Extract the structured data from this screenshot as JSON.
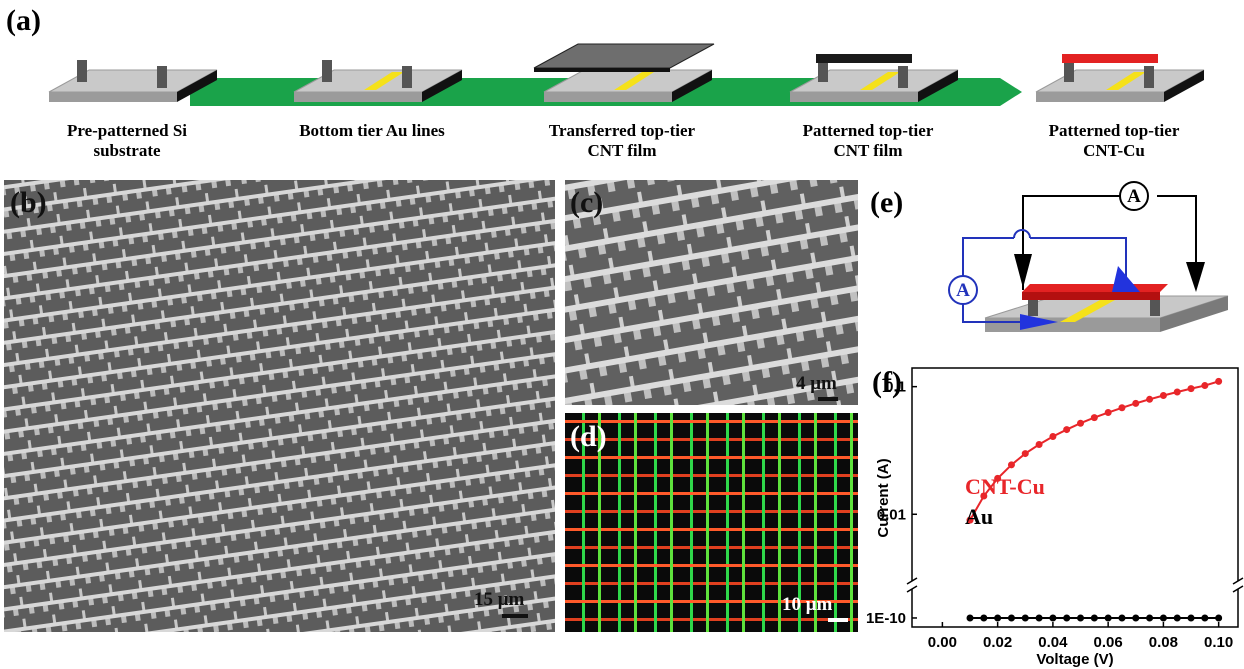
{
  "panel_a": {
    "label": "(a)",
    "captions": [
      [
        "Pre-patterned Si",
        "substrate"
      ],
      [
        "Bottom tier Au lines"
      ],
      [
        "Transferred top-tier",
        "CNT film"
      ],
      [
        "Patterned top-tier",
        "CNT film"
      ],
      [
        "Patterned top-tier",
        "CNT-Cu"
      ]
    ]
  },
  "panel_b": {
    "label": "(b)",
    "scale_bar": "15 μm"
  },
  "panel_c": {
    "label": "(c)",
    "scale_bar": "4 μm"
  },
  "panel_d": {
    "label": "(d)",
    "scale_bar": "10 μm"
  },
  "panel_e": {
    "label": "(e)",
    "ammeters": [
      "A",
      "A"
    ]
  },
  "panel_f": {
    "label": "(f)"
  },
  "chart_data": {
    "type": "line",
    "x_label": "Voltage (V)",
    "y_label": "Current (A)",
    "log_y": true,
    "x": [
      0.01,
      0.015,
      0.02,
      0.025,
      0.03,
      0.035,
      0.04,
      0.045,
      0.05,
      0.055,
      0.06,
      0.065,
      0.07,
      0.075,
      0.08,
      0.085,
      0.09,
      0.095,
      0.1
    ],
    "series": [
      {
        "name": "CNT-Cu",
        "color": "#e8262a",
        "axis": "y",
        "values": [
          0.009,
          0.0139,
          0.0191,
          0.0244,
          0.0299,
          0.0352,
          0.0407,
          0.0461,
          0.0517,
          0.0572,
          0.0627,
          0.0683,
          0.074,
          0.0796,
          0.0852,
          0.0908,
          0.0965,
          0.102,
          0.11
        ]
      },
      {
        "name": "Au",
        "color": "#000000",
        "axis": "y_lower",
        "values": [
          1e-10,
          1e-10,
          1e-10,
          1e-10,
          1e-10,
          1e-10,
          1e-10,
          1e-10,
          1e-10,
          1e-10,
          1e-10,
          1e-10,
          1e-10,
          1e-10,
          1e-10,
          1e-10,
          1e-10,
          1e-10,
          1e-10
        ]
      }
    ],
    "xlim": [
      -0.011,
      0.107
    ],
    "xticks": [
      {
        "value": 0,
        "label": "0.00"
      },
      {
        "value": 0.02,
        "label": "0.02"
      },
      {
        "value": 0.04,
        "label": "0.04"
      },
      {
        "value": 0.06,
        "label": "0.06"
      },
      {
        "value": 0.08,
        "label": "0.08"
      },
      {
        "value": 0.1,
        "label": "0.10"
      }
    ],
    "ylim": [
      0.003,
      0.14
    ],
    "yticks": [
      0.01,
      0.1
    ],
    "ylim_lower": [
      8.4e-11,
      1.75e-10
    ],
    "yticks_lower": [
      {
        "value": 1e-10,
        "label": "1E-10"
      }
    ]
  }
}
